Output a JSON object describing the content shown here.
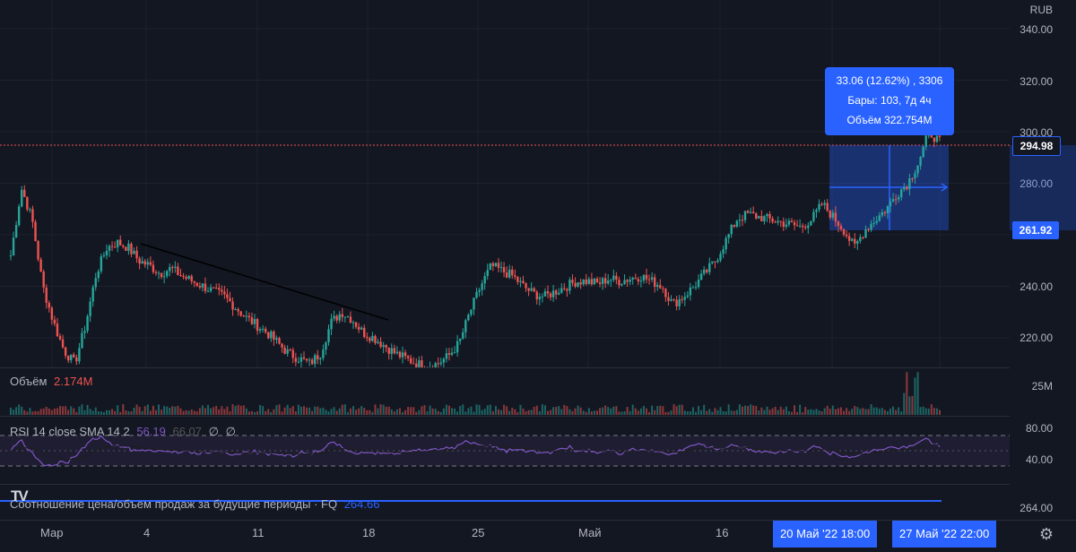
{
  "price_axis": {
    "currency": "RUB",
    "ticks": [
      "340.00",
      "320.00",
      "300.00",
      "280.00",
      "240.00",
      "220.00"
    ],
    "current_price": "294.98",
    "range_low_price": "261.92"
  },
  "measure_tooltip": {
    "line1": "33.06 (12.62%) , 3306",
    "line2": "Бары: 103, 7д 4ч",
    "line3": "Объём 322.754M"
  },
  "volume_pane": {
    "label": "Объём",
    "value": "2.174M",
    "axis_tick": "25M"
  },
  "rsi_pane": {
    "label": "RSI 14 close SMA 14 2",
    "rsi_value": "56.19",
    "sma_value": "66.07",
    "extra1": "∅",
    "extra2": "∅",
    "axis_ticks": [
      "80.00",
      "40.00"
    ]
  },
  "fq_pane": {
    "label": "Соотношение цена/объем продаж за будущие периоды · FQ",
    "value": "264.66",
    "axis_tick": "264.00"
  },
  "time_axis": {
    "labels": [
      "Мар",
      "4",
      "11",
      "18",
      "25",
      "Май",
      "16"
    ],
    "badge_start": "20 Май '22   18:00",
    "badge_end": "27 Май '22   22:00"
  },
  "logo_text": "TV",
  "colors": {
    "background": "#131722",
    "up": "#26a69a",
    "down": "#ef5350",
    "accent": "#2962ff",
    "rsi": "#7e57c2"
  },
  "icons": {
    "settings": "gear-icon"
  },
  "chart_data": {
    "type": "candlestick",
    "series": [
      {
        "name": "price",
        "values": [
          252,
          278,
          266,
          240,
          226,
          215,
          210,
          225,
          245,
          255,
          257,
          255,
          250,
          248,
          245,
          247,
          244,
          242,
          240,
          238,
          236,
          232,
          228,
          225,
          222,
          218,
          214,
          212,
          210,
          214,
          226,
          230,
          227,
          222,
          220,
          217,
          214,
          212,
          210,
          209,
          210,
          213,
          218,
          230,
          240,
          248,
          246,
          244,
          240,
          237,
          236,
          238,
          240,
          242,
          242,
          241,
          243,
          242,
          243,
          244,
          242,
          240,
          233,
          236,
          240,
          245,
          250,
          258,
          266,
          268,
          267,
          266,
          265,
          264,
          263,
          266,
          272,
          267,
          262,
          255,
          262,
          266,
          270,
          276,
          280,
          288,
          300,
          296
        ]
      }
    ]
  }
}
